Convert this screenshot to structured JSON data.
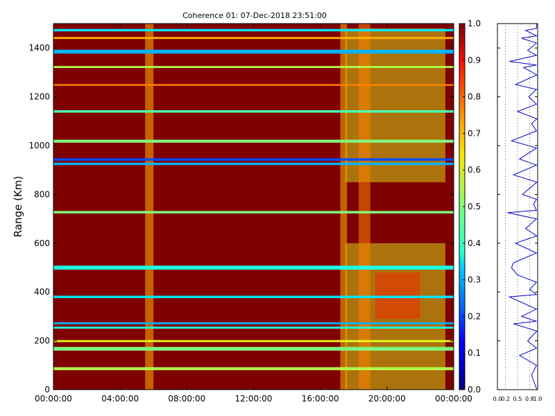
{
  "chart_data": [
    {
      "type": "heatmap",
      "title": "Coherence 01: 07-Dec-2018 23:51:00",
      "xlabel": "",
      "ylabel": "Range (Km)",
      "x_ticks": [
        "00:00:00",
        "04:00:00",
        "08:00:00",
        "12:00:00",
        "16:00:00",
        "20:00:00",
        "00:00:00"
      ],
      "xlim_hours": [
        0,
        24
      ],
      "y_ticks": [
        0,
        200,
        400,
        600,
        800,
        1000,
        1200,
        1400
      ],
      "ylim": [
        0,
        1500
      ],
      "colorbar": {
        "colormap": "jet",
        "range": [
          0.0,
          1.0
        ],
        "ticks": [
          "0.0",
          "0.1",
          "0.2",
          "0.3",
          "0.4",
          "0.5",
          "0.6",
          "0.7",
          "0.8",
          "0.9",
          "1.0"
        ]
      },
      "background_value": 1.0,
      "low_coherence_bands": [
        {
          "range_km": [
            1468,
            1478
          ],
          "value": 0.35
        },
        {
          "range_km": [
            1437,
            1445
          ],
          "value": 0.7
        },
        {
          "range_km": [
            1377,
            1393
          ],
          "value": 0.3
        },
        {
          "range_km": [
            1318,
            1326
          ],
          "value": 0.55
        },
        {
          "range_km": [
            1245,
            1252
          ],
          "value": 0.75
        },
        {
          "range_km": [
            1135,
            1145
          ],
          "value": 0.45
        },
        {
          "range_km": [
            1012,
            1024
          ],
          "value": 0.5
        },
        {
          "range_km": [
            938,
            948
          ],
          "value": 0.2
        },
        {
          "range_km": [
            920,
            930
          ],
          "value": 0.3
        },
        {
          "range_km": [
            722,
            732
          ],
          "value": 0.5
        },
        {
          "range_km": [
            492,
            508
          ],
          "value": 0.4
        },
        {
          "range_km": [
            375,
            385
          ],
          "value": 0.35
        },
        {
          "range_km": [
            268,
            276
          ],
          "value": 0.3
        },
        {
          "range_km": [
            250,
            258
          ],
          "value": 0.4
        },
        {
          "range_km": [
            195,
            203
          ],
          "value": 0.6
        },
        {
          "range_km": [
            160,
            175
          ],
          "value": 0.5
        },
        {
          "range_km": [
            80,
            92
          ],
          "value": 0.55
        }
      ],
      "low_coherence_columns_hours": [
        {
          "hours": [
            5.5,
            6.0
          ],
          "value": 0.7
        },
        {
          "hours": [
            17.2,
            17.6
          ],
          "value": 0.7
        },
        {
          "hours": [
            18.3,
            19.0
          ],
          "value": 0.75
        }
      ],
      "low_coherence_regions": [
        {
          "hours": [
            17.5,
            23.5
          ],
          "range_km": [
            850,
            1480
          ],
          "value": 0.6
        },
        {
          "hours": [
            17.5,
            23.5
          ],
          "range_km": [
            0,
            600
          ],
          "value": 0.6
        },
        {
          "hours": [
            19.3,
            22.0
          ],
          "range_km": [
            290,
            480
          ],
          "value": 0.85
        }
      ]
    },
    {
      "type": "line",
      "title": "",
      "xlabel": "",
      "ylabel": "",
      "x_ticks": [
        "0.0",
        "0.2",
        "0.5",
        "0.8",
        "1.0"
      ],
      "xlim": [
        0,
        1
      ],
      "ylim": [
        0,
        1500
      ],
      "grid": "vertical dotted",
      "series_color": "#0000cc",
      "x": [
        0.98,
        0.97,
        0.7,
        0.97,
        0.6,
        0.97,
        0.75,
        0.97,
        0.3,
        0.97,
        0.65,
        0.98,
        0.45,
        0.97,
        0.78,
        0.97,
        0.5,
        0.98,
        0.85,
        0.97,
        0.35,
        0.97,
        0.55,
        0.97,
        0.4,
        0.98,
        0.62,
        0.97,
        0.9,
        0.97,
        0.25,
        0.97,
        0.7,
        0.98,
        0.45,
        0.97,
        0.4,
        0.35,
        0.5,
        0.97,
        0.8,
        0.97,
        0.3,
        0.97,
        0.6,
        0.97,
        0.4,
        0.98,
        0.75,
        0.97,
        0.55,
        0.97,
        0.85,
        0.98
      ],
      "y": [
        1500,
        1480,
        1472,
        1450,
        1440,
        1420,
        1390,
        1370,
        1345,
        1330,
        1320,
        1290,
        1250,
        1230,
        1200,
        1170,
        1140,
        1110,
        1090,
        1060,
        1020,
        990,
        945,
        920,
        880,
        850,
        800,
        780,
        760,
        735,
        725,
        700,
        660,
        630,
        600,
        560,
        520,
        500,
        470,
        440,
        410,
        390,
        380,
        330,
        300,
        280,
        270,
        240,
        200,
        170,
        140,
        100,
        60,
        0
      ]
    }
  ]
}
